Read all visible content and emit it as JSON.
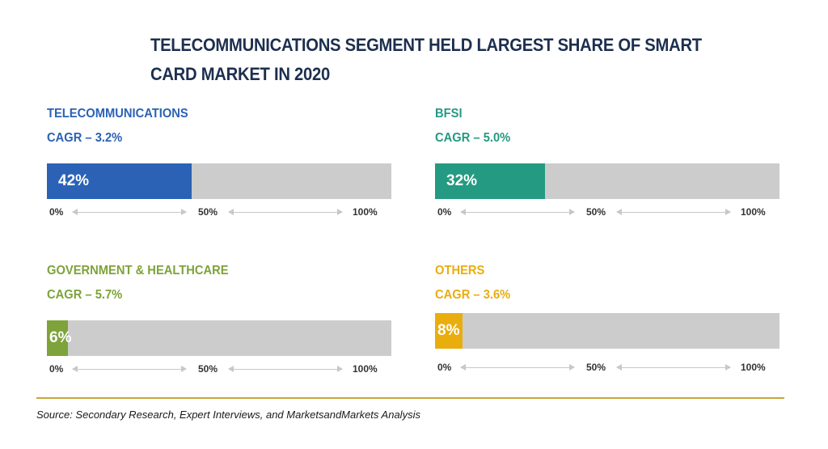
{
  "title": "TELECOMMUNICATIONS SEGMENT HELD LARGEST SHARE OF SMART CARD MARKET IN 2020",
  "source": "Source: Secondary Research, Expert Interviews, and MarketsandMarkets Analysis",
  "colors": {
    "title": "#1d2f4f",
    "telecommunications": "#2b62b5",
    "bfsi": "#249a82",
    "government_healthcare": "#7da33a",
    "others": "#e9ad0e",
    "track": "#cccccc",
    "divider": "#c9a63a"
  },
  "chart_data": {
    "type": "bar",
    "title": "TELECOMMUNICATIONS SEGMENT HELD LARGEST SHARE OF SMART CARD MARKET IN 2020",
    "orientation": "horizontal",
    "xlim": [
      0,
      100
    ],
    "axis_ticks": [
      "0%",
      "50%",
      "100%"
    ],
    "categories": [
      "TELECOMMUNICATIONS",
      "BFSI",
      "GOVERNMENT & HEALTHCARE",
      "OTHERS"
    ],
    "values": [
      42,
      32,
      6,
      8
    ],
    "value_labels": [
      "42%",
      "32%",
      "6%",
      "8%"
    ],
    "cagr_labels": [
      "CAGR – 3.2%",
      "CAGR – 5.0%",
      "CAGR – 5.7%",
      "CAGR – 3.6%"
    ],
    "grid": false
  }
}
